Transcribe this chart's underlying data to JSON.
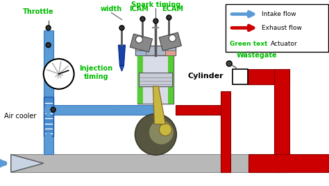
{
  "intake_color": "#5b9bd5",
  "exhaust_color": "#cc0000",
  "green_color": "#00bb00",
  "black_color": "#000000",
  "white_color": "#ffffff",
  "labels": {
    "throttle": "Throttle",
    "width": "width",
    "spark_timing": "Spark timing",
    "icam": "ICAM",
    "ecam": "ECAM",
    "injection_timing": "Injection\ntiming",
    "cylinder": "Cylinder",
    "air_cooler": "Air cooler",
    "wastegate": "Wastegate",
    "intake_flow": "Intake flow",
    "exhaust_flow": "Exhaust flow",
    "green_text": "Green text",
    "actuator": "Actuator"
  }
}
